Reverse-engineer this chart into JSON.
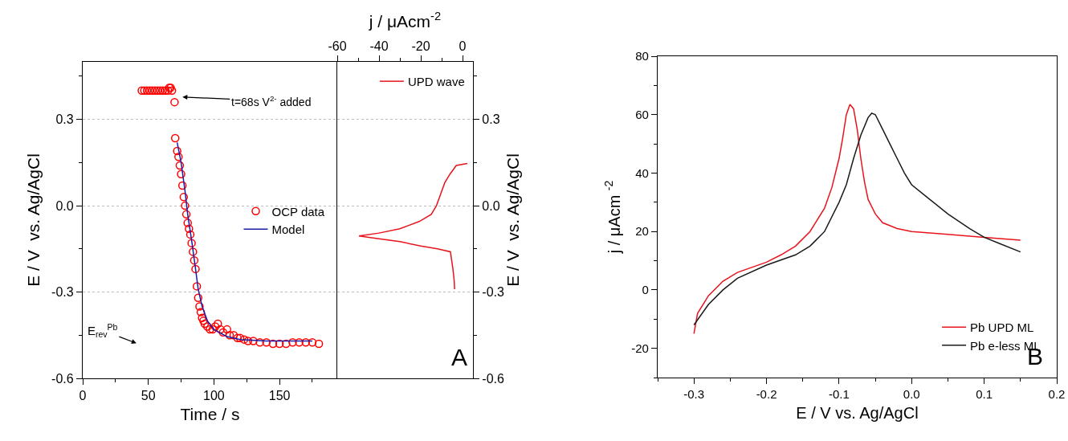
{
  "chart_data": [
    {
      "type": "scatter",
      "xlabel": "Time / s",
      "ylabel": "E / V  vs. Ag/AgCl",
      "xlim": [
        0,
        194
      ],
      "xticks": [
        0,
        50,
        100,
        150
      ],
      "ylim": [
        -0.6,
        0.5
      ],
      "yticks": [
        -0.6,
        -0.3,
        {
          "value": 0,
          "label": "0.0"
        },
        0.3
      ],
      "grid": "y",
      "legend": "right",
      "series": [
        {
          "name": "OCP data",
          "type": "scatter",
          "marker": "circle",
          "color": "#ff0000",
          "x": [
            45,
            47,
            49,
            51,
            53,
            55,
            57,
            59,
            61,
            63,
            65,
            66,
            67,
            68,
            70,
            70.5,
            72,
            73,
            74,
            75,
            76,
            77,
            78,
            79,
            80,
            81,
            82,
            83,
            84,
            85,
            86,
            87,
            88,
            89,
            90,
            91,
            92,
            93,
            95,
            97,
            99,
            101,
            103,
            105,
            107,
            110,
            112,
            115,
            118,
            120,
            123,
            126,
            130,
            135,
            140,
            145,
            150,
            155,
            160,
            165,
            170,
            175,
            180
          ],
          "values": [
            0.4,
            0.4,
            0.4,
            0.4,
            0.4,
            0.4,
            0.4,
            0.4,
            0.4,
            0.4,
            0.4,
            0.41,
            0.41,
            0.4,
            0.36,
            0.235,
            0.19,
            0.17,
            0.14,
            0.11,
            0.07,
            0.03,
            0,
            -0.03,
            -0.06,
            -0.08,
            -0.1,
            -0.13,
            -0.16,
            -0.19,
            -0.22,
            -0.28,
            -0.32,
            -0.35,
            -0.37,
            -0.39,
            -0.4,
            -0.41,
            -0.42,
            -0.43,
            -0.43,
            -0.42,
            -0.41,
            -0.43,
            -0.44,
            -0.43,
            -0.45,
            -0.45,
            -0.46,
            -0.46,
            -0.465,
            -0.47,
            -0.47,
            -0.475,
            -0.475,
            -0.48,
            -0.48,
            -0.48,
            -0.475,
            -0.475,
            -0.475,
            -0.475,
            -0.48
          ]
        },
        {
          "name": "Model",
          "type": "line",
          "marker": "none",
          "color": "#1c1ca8",
          "x": [
            72,
            75,
            78,
            80,
            83,
            86,
            88,
            91,
            95,
            100,
            110,
            120,
            140,
            175
          ],
          "values": [
            0.22,
            0.15,
            0.05,
            -0.03,
            -0.12,
            -0.22,
            -0.29,
            -0.35,
            -0.4,
            -0.43,
            -0.455,
            -0.465,
            -0.47,
            -0.47
          ]
        }
      ],
      "annotations": [
        "t=68s V$^{2-}$ added",
        "E$_{rev}$$^{Pb}$"
      ]
    },
    {
      "type": "line",
      "xlabel": "j / μAcm$^{-2}$",
      "xlim": [
        -60,
        5
      ],
      "xticks": [
        -60,
        -40,
        -20,
        0
      ],
      "ylabel": "E / V  vs. Ag/AgCl",
      "ylim": [
        -0.6,
        0.5
      ],
      "yticks": [
        -0.6,
        -0.3,
        {
          "value": 0,
          "label": "0.0"
        },
        0.3
      ],
      "grid": "y",
      "legend": "top right",
      "series": [
        {
          "name": "UPD wave",
          "color": "#e8141c",
          "x": [
            2.3,
            -3,
            -6,
            -8.5,
            -10.5,
            -12.5,
            -15,
            -20.8,
            -30,
            -40,
            -49.6,
            -40,
            -30,
            -20,
            -12,
            -5.8,
            -4.6,
            -4,
            -3.8
          ],
          "values": [
            0.147,
            0.14,
            0.11,
            0.08,
            0.04,
            0.0,
            -0.03,
            -0.055,
            -0.08,
            -0.095,
            -0.105,
            -0.115,
            -0.125,
            -0.14,
            -0.15,
            -0.16,
            -0.22,
            -0.26,
            -0.29
          ]
        }
      ],
      "annotations": [
        "A"
      ]
    },
    {
      "type": "line",
      "xlabel": "E / V vs. Ag/AgCl",
      "ylabel": "j / μAcm $^{-2}$",
      "xlim": [
        -0.35,
        0.2
      ],
      "xticks": [
        -0.3,
        -0.2,
        -0.1,
        {
          "value": 0,
          "label": "0.0"
        },
        0.1,
        0.2
      ],
      "ylim": [
        -30,
        80
      ],
      "yticks": [
        -20,
        0,
        20,
        40,
        60,
        80
      ],
      "grid": false,
      "legend": "bottom right",
      "series": [
        {
          "name": "Pb UPD ML",
          "color": "#e8141c",
          "x": [
            -0.3,
            -0.295,
            -0.28,
            -0.26,
            -0.24,
            -0.2,
            -0.18,
            -0.16,
            -0.14,
            -0.12,
            -0.11,
            -0.1,
            -0.095,
            -0.09,
            -0.085,
            -0.08,
            -0.075,
            -0.07,
            -0.065,
            -0.06,
            -0.05,
            -0.04,
            -0.02,
            0,
            0.05,
            0.1,
            0.15
          ],
          "values": [
            -15,
            -8,
            -2,
            3,
            6,
            9.5,
            12,
            15,
            20,
            28,
            35,
            45,
            52,
            60,
            63.5,
            62,
            55,
            45,
            37,
            31,
            26,
            23,
            21,
            20,
            19,
            18,
            17
          ]
        },
        {
          "name": "Pb e-less ML",
          "color": "#1a1a1a",
          "x": [
            -0.3,
            -0.28,
            -0.26,
            -0.24,
            -0.2,
            -0.16,
            -0.14,
            -0.12,
            -0.1,
            -0.09,
            -0.08,
            -0.07,
            -0.06,
            -0.055,
            -0.05,
            -0.04,
            -0.03,
            -0.02,
            -0.01,
            0,
            0.02,
            0.05,
            0.08,
            0.1,
            0.12,
            0.15
          ],
          "values": [
            -12,
            -5,
            0,
            4,
            8.5,
            12,
            15,
            20,
            30,
            36,
            45,
            53,
            59,
            60.5,
            60,
            55,
            50,
            45,
            40,
            36,
            32,
            26,
            21,
            18,
            16,
            13
          ]
        }
      ],
      "annotations": [
        "B"
      ]
    }
  ]
}
